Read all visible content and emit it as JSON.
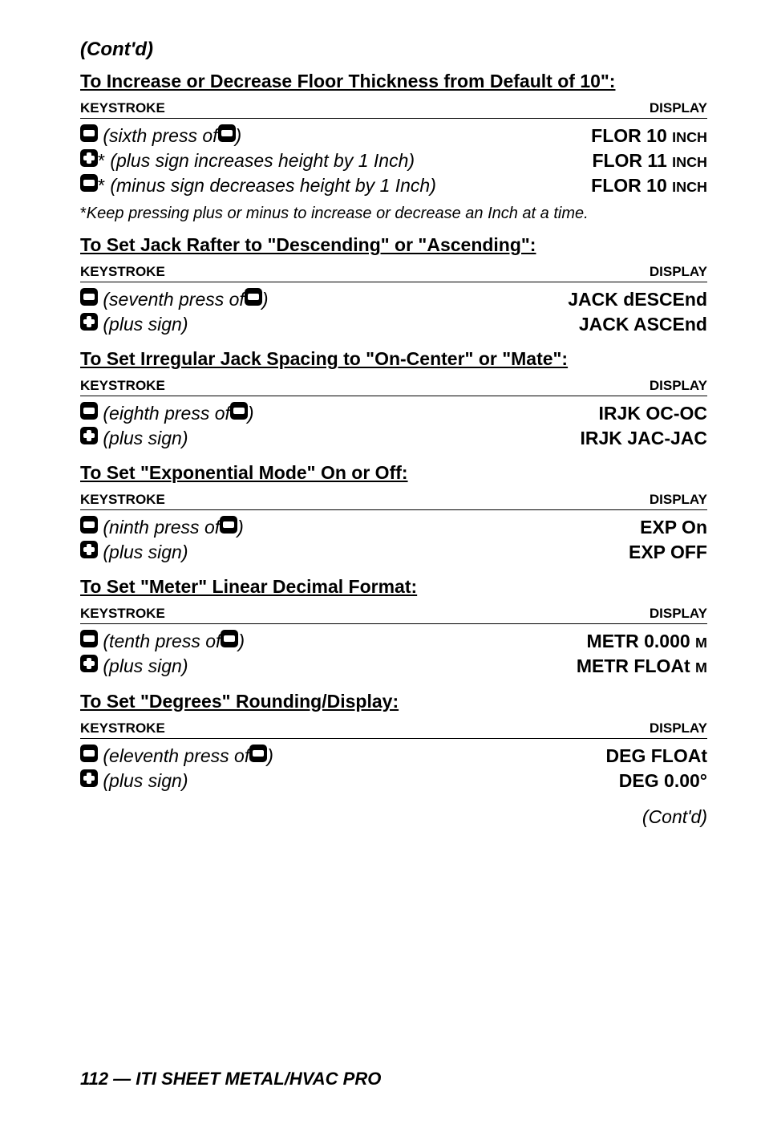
{
  "contd": "(Cont'd)",
  "sections": [
    {
      "title": "To Increase or Decrease Floor Thickness from Default of 10\":",
      "header_left": "KEYSTROKE",
      "header_right": "DISPLAY",
      "rows": [
        {
          "icon1": "minus",
          "text_before": " ",
          "ital": "(sixth press of ",
          "icon2": "minus",
          "ital2": ")",
          "result_main": "FLOR  10 ",
          "result_sc": "INCH"
        },
        {
          "icon1": "plus",
          "star": "*",
          "text_before": " ",
          "ital": "(plus sign increases height by 1 Inch)",
          "result_main": "FLOR  11 ",
          "result_sc": "INCH"
        },
        {
          "icon1": "minus",
          "star": "*",
          "text_before": " ",
          "ital": "(minus sign decreases height by 1 Inch)",
          "result_main": "FLOR  10 ",
          "result_sc": "INCH"
        }
      ],
      "footnote_star": "*",
      "footnote_ital": "Keep pressing plus or minus to increase or decrease an Inch at a time."
    },
    {
      "title": "To Set Jack Rafter to \"Descending\" or \"Ascending\": ",
      "header_left": "KEYSTROKE",
      "header_right": "DISPLAY",
      "rows": [
        {
          "icon1": "minus",
          "text_before": " ",
          "ital": "(seventh press of ",
          "icon2": "minus",
          "ital2": ")",
          "result_main": "JACK dESCEnd"
        },
        {
          "icon1": "plus",
          "text_before": " ",
          "ital": "(plus sign)",
          "result_main": "JACK  ASCEnd"
        }
      ]
    },
    {
      "title": "To Set Irregular Jack Spacing to \"On-Center\" or \"Mate\": ",
      "header_left": "KEYSTROKE",
      "header_right": "DISPLAY",
      "rows": [
        {
          "icon1": "minus",
          "text_before": " ",
          "ital": "(eighth press of ",
          "icon2": "minus",
          "ital2": ")",
          "result_main": "IRJK  OC-OC"
        },
        {
          "icon1": "plus",
          "text_before": " ",
          "ital": "(plus sign)",
          "result_main": "IRJK  JAC-JAC"
        }
      ]
    },
    {
      "title": "To Set \"Exponential Mode\" On or Off: ",
      "header_left": "KEYSTROKE",
      "header_right": "DISPLAY",
      "rows": [
        {
          "icon1": "minus",
          "text_before": " ",
          "ital": "(ninth press of ",
          "icon2": "minus",
          "ital2": ")",
          "result_main": "EXP  On"
        },
        {
          "icon1": "plus",
          "text_before": " ",
          "ital": "(plus sign)",
          "result_main": "EXP  OFF"
        }
      ]
    },
    {
      "title": "To Set \"Meter\" Linear Decimal Format:",
      "header_left": "KEYSTROKE",
      "header_right": "DISPLAY",
      "rows": [
        {
          "icon1": "minus",
          "text_before": " ",
          "ital": "(tenth press of ",
          "icon2": "minus",
          "ital2": ")",
          "result_main": "METR  0.000 ",
          "result_sc": "M"
        },
        {
          "icon1": "plus",
          "text_before": " ",
          "ital": "(plus sign)",
          "result_main": "METR  FLOAt  ",
          "result_sc": "M"
        }
      ]
    },
    {
      "title": "To Set \"Degrees\" Rounding/Display:",
      "header_left": "KEYSTROKE",
      "header_right": "DISPLAY",
      "rows": [
        {
          "icon1": "minus",
          "text_before": " ",
          "ital": "(eleventh press of ",
          "icon2": "minus",
          "ital2": ")",
          "result_main": "DEG  FLOAt"
        },
        {
          "icon1": "plus",
          "text_before": " ",
          "ital": "(plus sign)",
          "result_main": "DEG  0.00°"
        }
      ]
    }
  ],
  "contd_bottom": "(Cont'd)",
  "footer_page": "112 — ITI S",
  "footer_sc1": "HEET",
  "footer_mid": " M",
  "footer_sc2": "ETAL",
  "footer_mid2": "/HVAC P",
  "footer_sc3": "RO"
}
